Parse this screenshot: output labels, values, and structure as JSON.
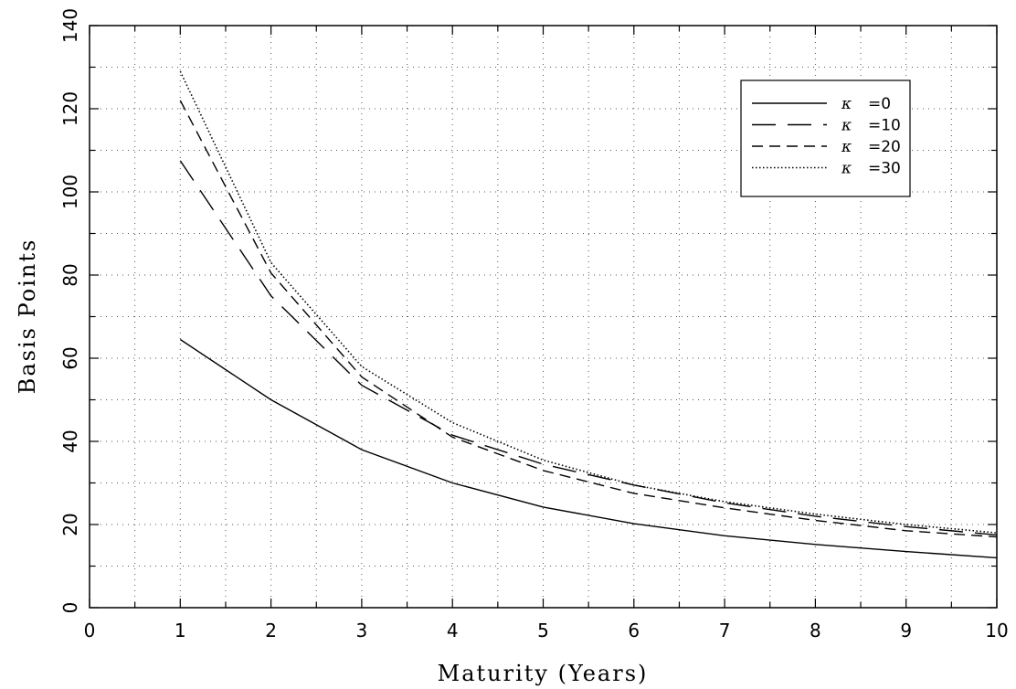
{
  "chart_data": {
    "type": "line",
    "xlabel": "Maturity (Years)",
    "ylabel": "Basis Points",
    "xlim": [
      0,
      10
    ],
    "ylim": [
      0,
      140
    ],
    "xticks": [
      0,
      1,
      2,
      3,
      4,
      5,
      6,
      7,
      8,
      9,
      10
    ],
    "yticks": [
      0,
      20,
      40,
      60,
      80,
      100,
      120,
      140
    ],
    "grid": "dotted",
    "legend_position": "top-right",
    "x": [
      1,
      2,
      3,
      4,
      5,
      6,
      7,
      8,
      9,
      10
    ],
    "series": [
      {
        "symbol": "κ",
        "value": "=0",
        "style": "solid",
        "values": [
          64.5,
          50,
          38,
          30,
          24.2,
          20.2,
          17.3,
          15.2,
          13.5,
          12
        ]
      },
      {
        "symbol": "κ",
        "value": "=10",
        "style": "long-dash",
        "values": [
          107.5,
          75,
          53.5,
          41.5,
          34.5,
          29.5,
          25.2,
          22,
          19.5,
          17.5
        ]
      },
      {
        "symbol": "κ",
        "value": "=20",
        "style": "short-dash",
        "values": [
          122,
          80.5,
          55.5,
          41,
          33,
          27.5,
          24,
          21,
          18.5,
          17
        ]
      },
      {
        "symbol": "κ",
        "value": "=30",
        "style": "dotted",
        "values": [
          129,
          83,
          58,
          44.5,
          35.5,
          29.5,
          25.5,
          22.5,
          20,
          18
        ]
      }
    ]
  }
}
